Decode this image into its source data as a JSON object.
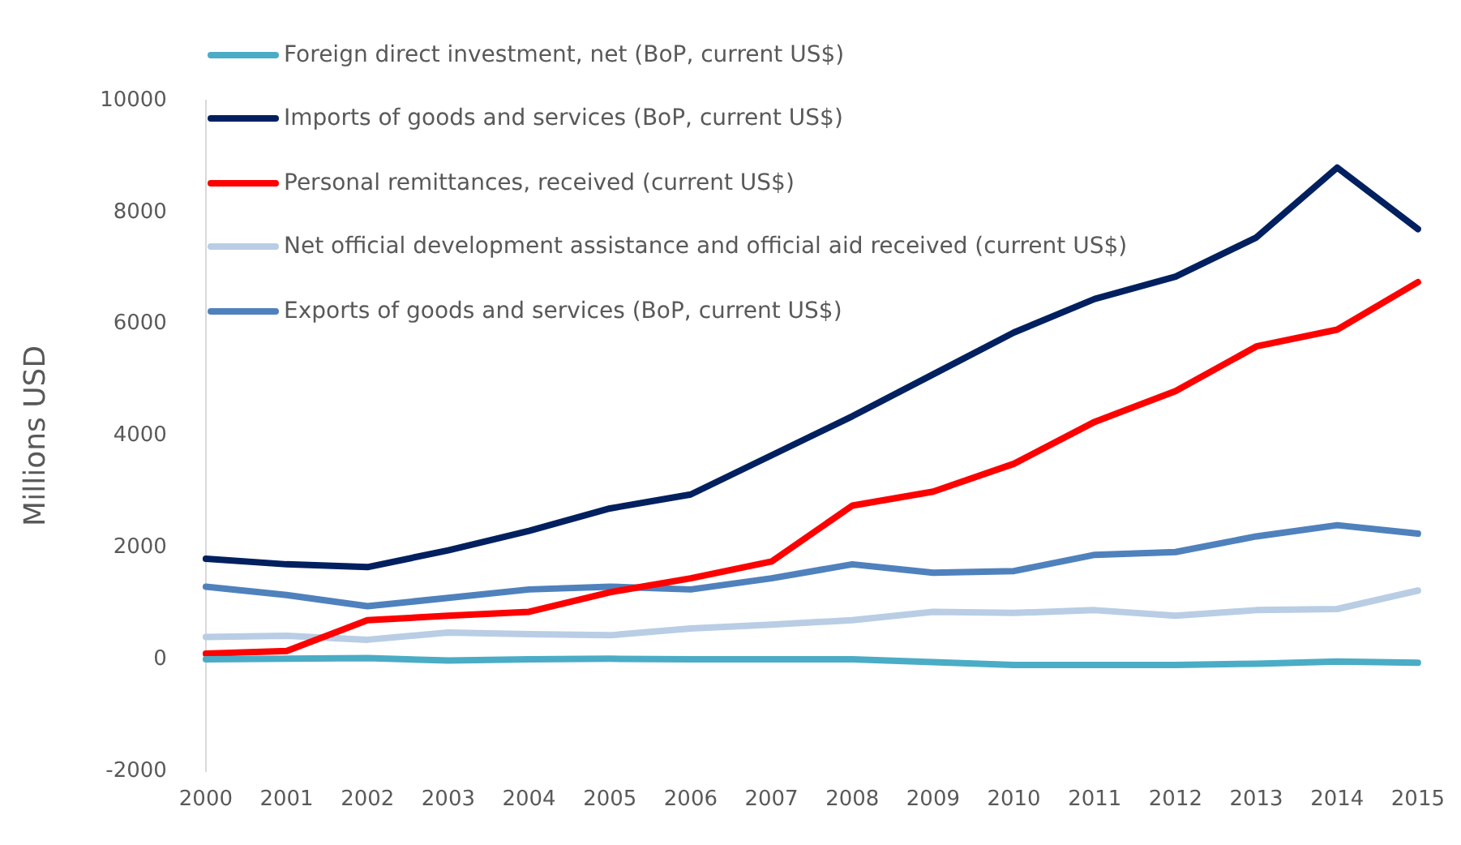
{
  "chart_data": {
    "type": "line",
    "ylabel": "Millions USD",
    "categories": [
      "2000",
      "2001",
      "2002",
      "2003",
      "2004",
      "2005",
      "2006",
      "2007",
      "2008",
      "2009",
      "2010",
      "2011",
      "2012",
      "2013",
      "2014",
      "2015"
    ],
    "ylim": [
      -2000,
      10000
    ],
    "yticks": [
      -2000,
      0,
      2000,
      4000,
      6000,
      8000,
      10000
    ],
    "grid": false,
    "legend": "top left",
    "marker": "none",
    "line_style": "solid",
    "series": [
      {
        "name": "Foreign direct investment, net (BoP, current US$)",
        "color": "#4bacc6",
        "values": [
          0,
          10,
          20,
          -20,
          0,
          10,
          0,
          0,
          0,
          -50,
          -100,
          -100,
          -100,
          -80,
          -40,
          -60
        ]
      },
      {
        "name": "Imports of goods and services (BoP, current US$)",
        "color": "#002060",
        "values": [
          1800,
          1700,
          1650,
          1950,
          2300,
          2700,
          2950,
          3650,
          4350,
          5100,
          5850,
          6450,
          6850,
          7550,
          8800,
          7700
        ]
      },
      {
        "name": "Personal remittances, received (current US$)",
        "color": "#ff0000",
        "values": [
          100,
          150,
          700,
          780,
          850,
          1200,
          1450,
          1750,
          2750,
          3000,
          3500,
          4250,
          4800,
          5600,
          5900,
          6750
        ]
      },
      {
        "name": "Net official development assistance and official aid received (current US$)",
        "color": "#b9cde5",
        "values": [
          400,
          420,
          350,
          480,
          450,
          430,
          550,
          620,
          700,
          850,
          830,
          880,
          780,
          880,
          900,
          1230
        ]
      },
      {
        "name": "Exports of goods and services (BoP, current US$)",
        "color": "#4f81bd",
        "values": [
          1300,
          1150,
          950,
          1100,
          1250,
          1300,
          1250,
          1450,
          1700,
          1550,
          1580,
          1870,
          1920,
          2200,
          2400,
          2250
        ]
      }
    ]
  }
}
